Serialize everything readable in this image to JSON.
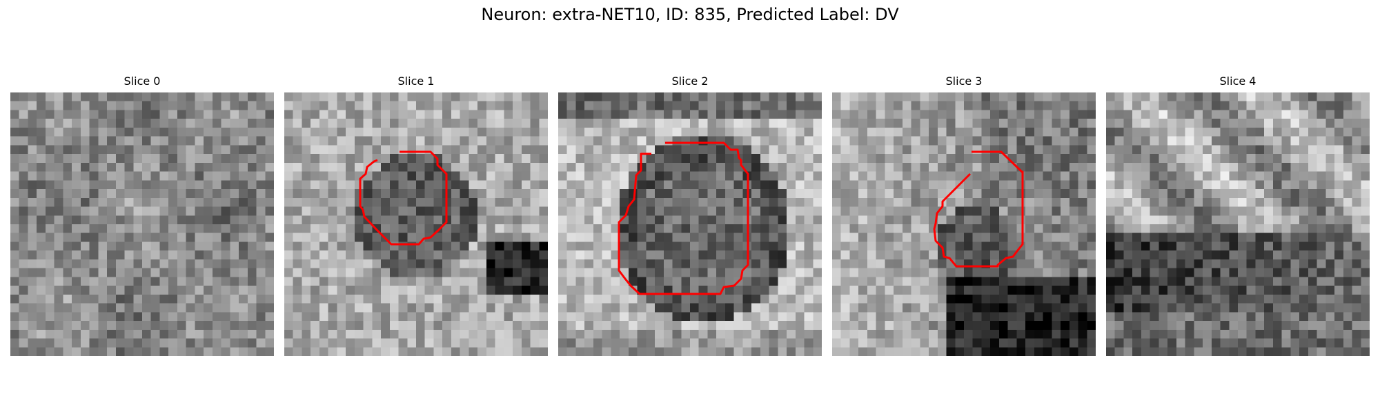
{
  "figure": {
    "title": "Neuron: extra-NET10, ID: 835, Predicted Label: DV",
    "contour_color": "#ff0000"
  },
  "panels": [
    {
      "title": "Slice 0",
      "image": "grayscale-noise-patch",
      "has_contour": false
    },
    {
      "title": "Slice 1",
      "image": "grayscale-noise-patch",
      "has_contour": true
    },
    {
      "title": "Slice 2",
      "image": "grayscale-noise-patch",
      "has_contour": true
    },
    {
      "title": "Slice 3",
      "image": "grayscale-noise-patch",
      "has_contour": true
    },
    {
      "title": "Slice 4",
      "image": "grayscale-noise-patch",
      "has_contour": false
    }
  ]
}
